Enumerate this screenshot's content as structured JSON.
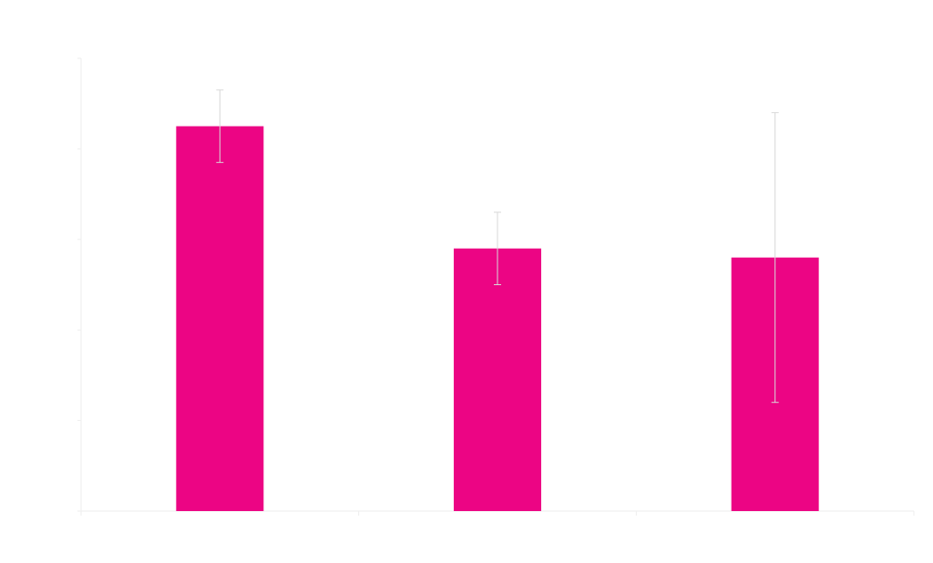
{
  "chart_data": {
    "type": "bar",
    "categories": [
      "",
      "",
      ""
    ],
    "values": [
      8.5,
      5.8,
      5.6
    ],
    "error": [
      [
        7.7,
        9.3
      ],
      [
        5.0,
        6.6
      ],
      [
        2.4,
        8.8
      ]
    ],
    "ylim": [
      0,
      10
    ],
    "yticks": [
      0,
      2,
      4,
      6,
      8,
      10
    ],
    "grid": false,
    "legend": "none",
    "colors": {
      "bar": "#ec0584",
      "errorbar": "#d8d8d8",
      "axis": "#eeeeee"
    }
  }
}
